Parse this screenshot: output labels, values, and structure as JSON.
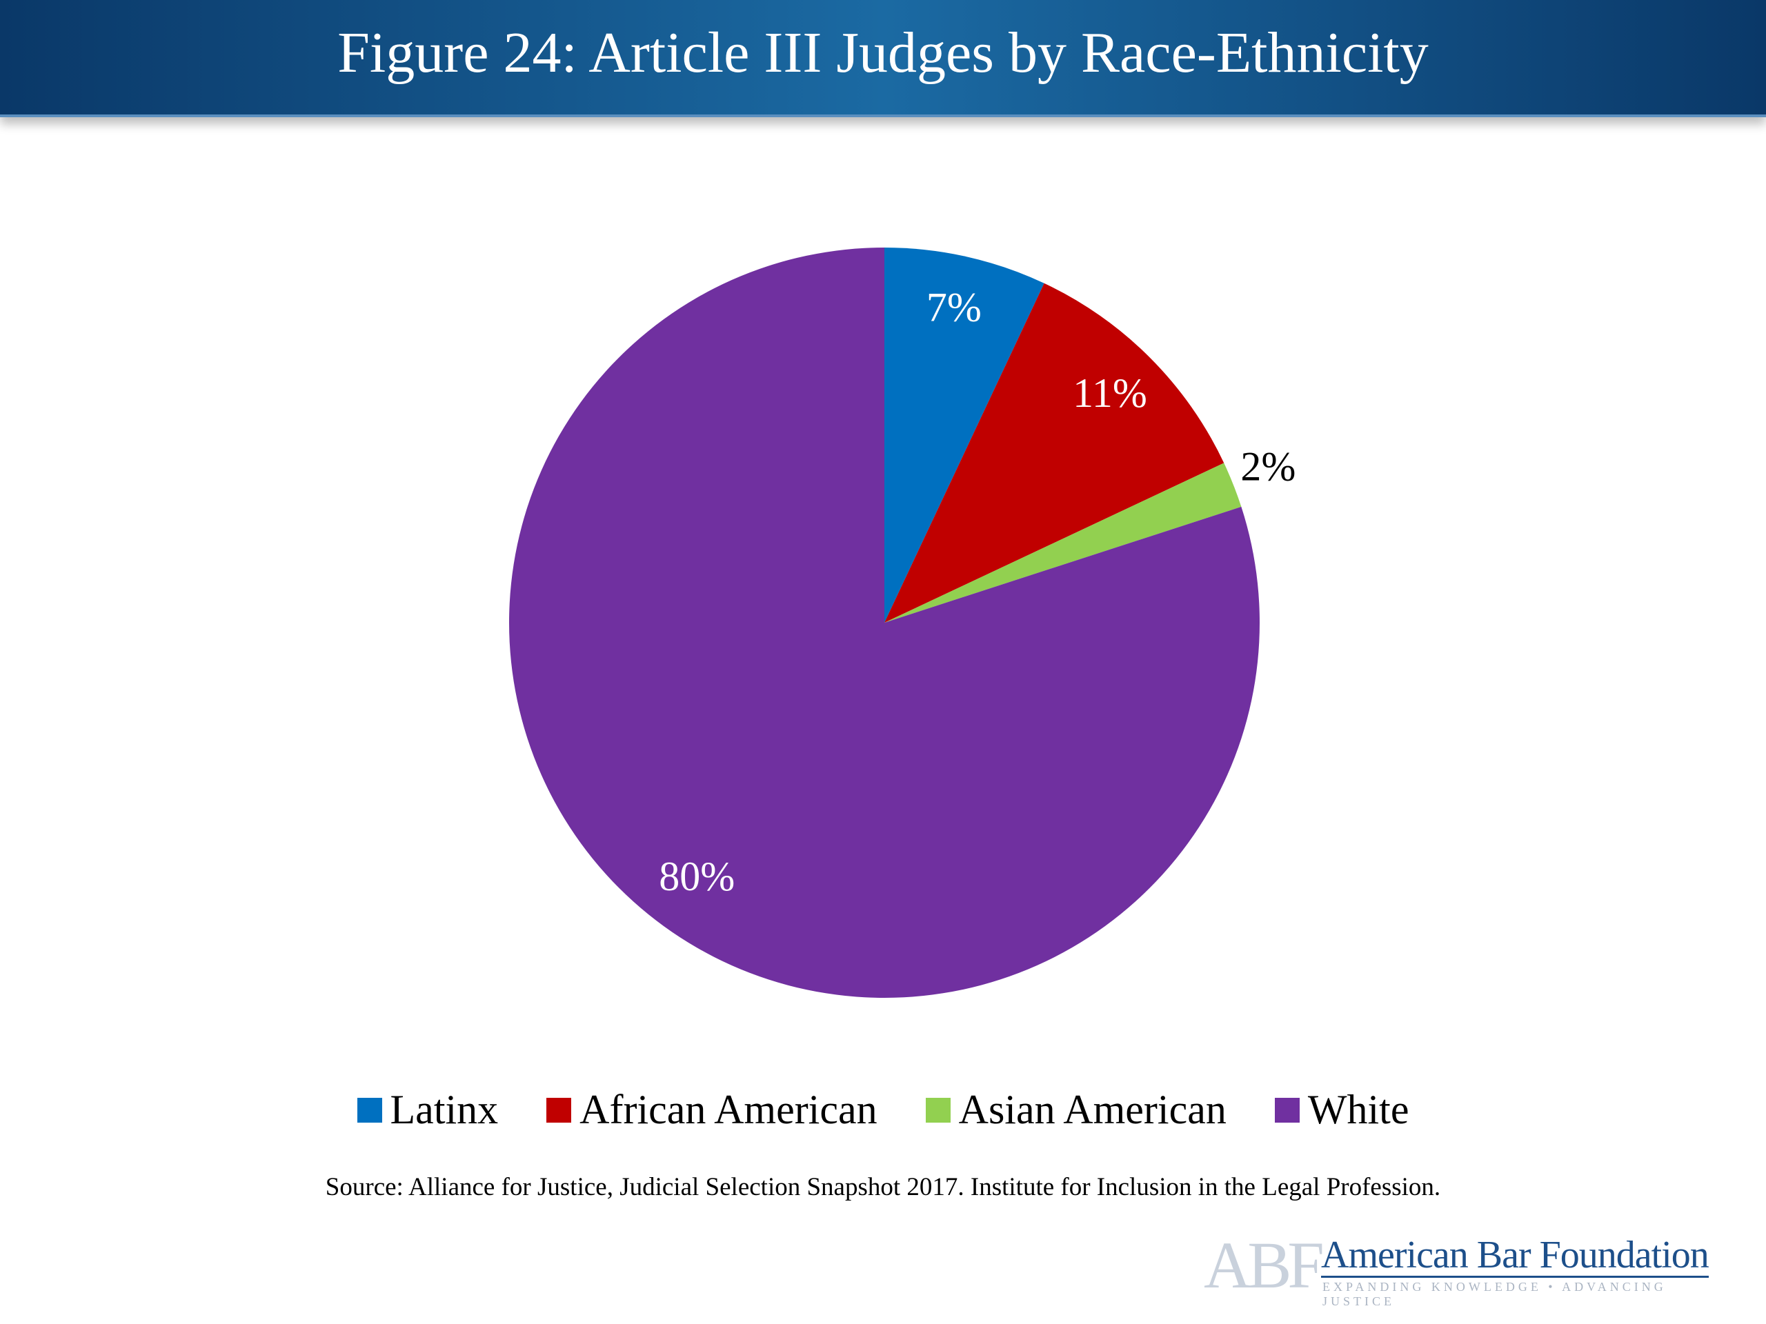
{
  "chart_data": {
    "type": "pie",
    "title": "Figure 24: Article III Judges by Race-Ethnicity",
    "categories": [
      "Latinx",
      "African American",
      "Asian American",
      "White"
    ],
    "values": [
      7,
      11,
      2,
      80
    ],
    "value_labels": [
      "7%",
      "11%",
      "2%",
      "80%"
    ],
    "colors": [
      "#0070c0",
      "#c00000",
      "#92d050",
      "#7030a0"
    ],
    "legend": "bottom",
    "source": "Source: Alliance for Justice, Judicial Selection Snapshot 2017. Institute for Inclusion in the Legal Profession.",
    "logo": {
      "mark": "ABF",
      "name": "American Bar Foundation",
      "tagline": "EXPANDING KNOWLEDGE • ADVANCING JUSTICE"
    }
  }
}
